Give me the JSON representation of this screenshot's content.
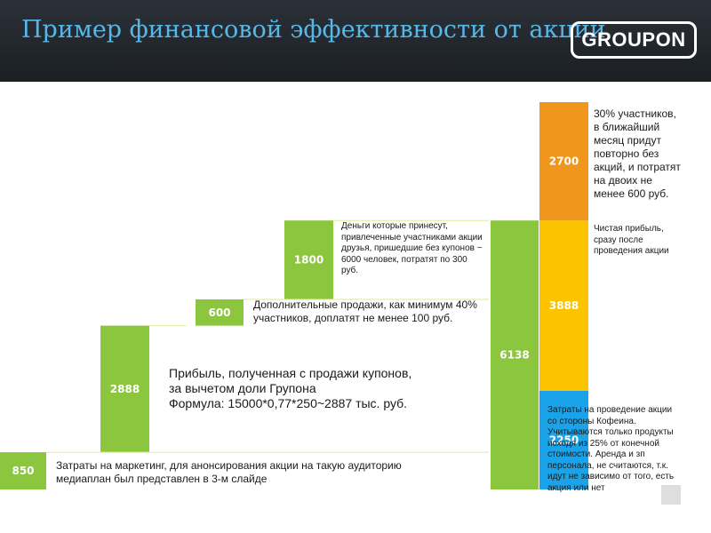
{
  "header": {
    "title": "Пример финансовой эффективности от акции",
    "logo_text": "GROUPON",
    "background": "#22272d",
    "title_color": "#57b7e6"
  },
  "colors": {
    "green": "#8cc63e",
    "orange": "#f1961c",
    "yellow": "#fcc300",
    "blue": "#1aa3e8",
    "separator": "#e2ea9a"
  },
  "notes": {
    "marketing": "Затраты на маркетинг, для анонсирования акции на такую аудиторию медиаплан был представлен в 3-м слайде",
    "coupon_profit": "Прибыль, полученная с продажи купонов,\nза вычетом доли Групона\nФормула: 15000*0,77*250~2887 тыс. руб.",
    "extra_sales": "Дополнительные продажи, как минимум 40% участников, доплатят не менее 100 руб.",
    "friends": "Деньги которые принесут, привлеченные участниками акции друзья, пришедшие без купонов ~  6000 человек, потратят по 300 руб.",
    "repeat": "30% участников, в ближайший месяц придут повторно без акций, и потратят на двоих не менее 600 руб.",
    "net_profit": "Чистая прибыль, сразу после проведения акции",
    "costs": "Затраты на проведение акции со стороны Кофеина. Учитываются только продукты исходя из 25% от конечной стоимости. Аренда и зп персонала, не считаются, т.к. идут не зависимо от того, есть акция или нет"
  },
  "chart_data": {
    "type": "bar",
    "subtype": "waterfall",
    "categories": [
      "850",
      "2888",
      "600",
      "1800",
      "6138",
      "2250",
      "3888",
      "2700"
    ],
    "bars": [
      {
        "label": "850",
        "value": 850,
        "base": 0,
        "color": "#8cc63e",
        "column": 0
      },
      {
        "label": "2888",
        "value": 2888,
        "base": 850,
        "color": "#8cc63e",
        "column": 1
      },
      {
        "label": "600",
        "value": 600,
        "base": 3738,
        "color": "#8cc63e",
        "column": 2
      },
      {
        "label": "1800",
        "value": 1800,
        "base": 4338,
        "color": "#8cc63e",
        "column": 3
      },
      {
        "label": "6138",
        "value": 6138,
        "base": 0,
        "color": "#8cc63e",
        "column": 4
      },
      {
        "label": "2250",
        "value": 2250,
        "base": 0,
        "color": "#1aa3e8",
        "column": 5
      },
      {
        "label": "3888",
        "value": 3888,
        "base": 2250,
        "color": "#fcc300",
        "column": 5
      },
      {
        "label": "2700",
        "value": 2700,
        "base": 6138,
        "color": "#f1961c",
        "column": 5
      }
    ],
    "ylim": [
      0,
      8838
    ],
    "grid": false,
    "legend": "none"
  }
}
